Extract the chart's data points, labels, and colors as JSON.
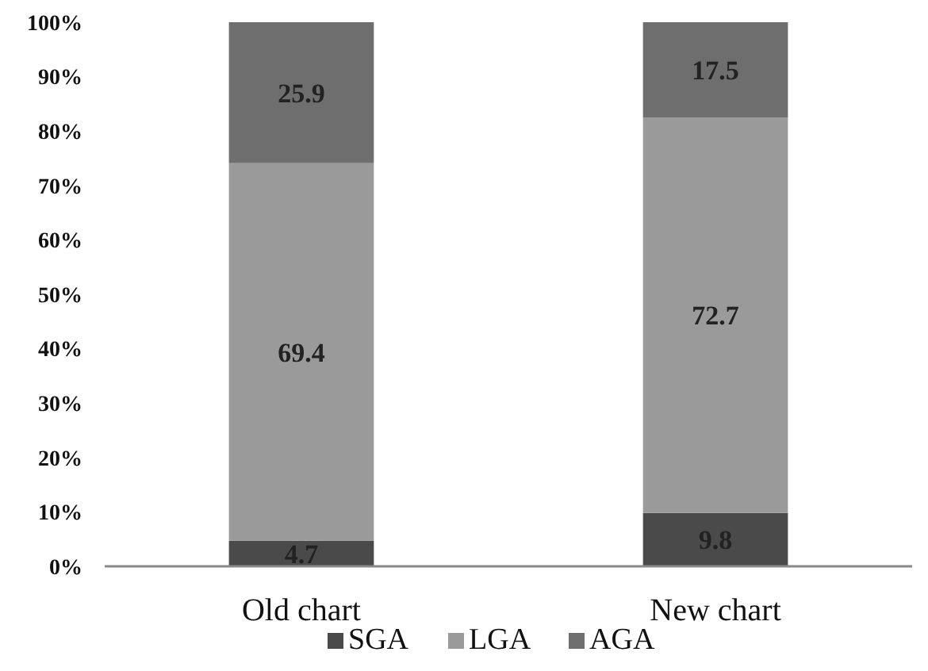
{
  "chart_data": {
    "type": "bar",
    "stacked": true,
    "categories": [
      "Old chart",
      "New chart"
    ],
    "series": [
      {
        "name": "SGA",
        "color": "#4a4a4a",
        "values": [
          4.7,
          9.8
        ]
      },
      {
        "name": "LGA",
        "color": "#9a9a9a",
        "values": [
          69.4,
          72.7
        ]
      },
      {
        "name": "AGA",
        "color": "#6e6e6e",
        "values": [
          25.9,
          17.5
        ]
      }
    ],
    "ylim": [
      0,
      100
    ],
    "yticks": [
      {
        "value": 0,
        "label": "0%"
      },
      {
        "value": 10,
        "label": "10%"
      },
      {
        "value": 20,
        "label": "20%"
      },
      {
        "value": 30,
        "label": "30%"
      },
      {
        "value": 40,
        "label": "40%"
      },
      {
        "value": 50,
        "label": "50%"
      },
      {
        "value": 60,
        "label": "60%"
      },
      {
        "value": 70,
        "label": "70%"
      },
      {
        "value": 80,
        "label": "80%"
      },
      {
        "value": 90,
        "label": "90%"
      },
      {
        "value": 100,
        "label": "100%"
      }
    ],
    "data_labels": true,
    "legend": "bottom",
    "grid": false
  }
}
